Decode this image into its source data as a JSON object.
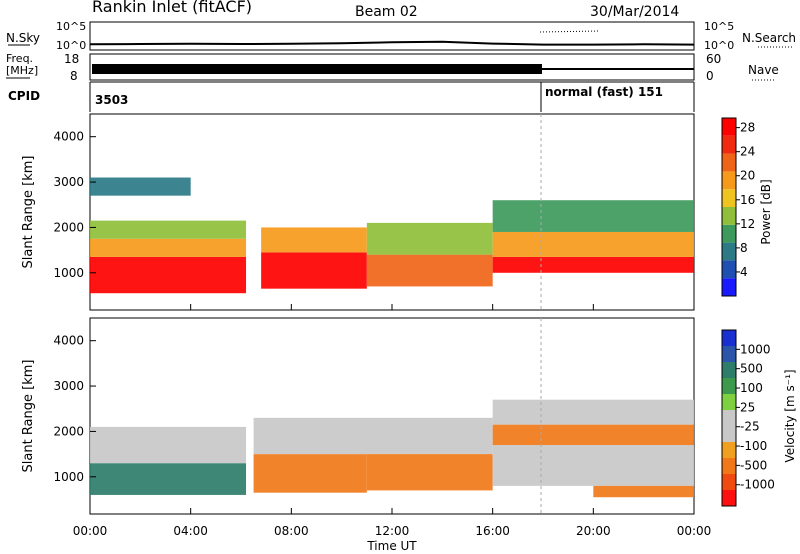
{
  "header": {
    "site": "Rankin Inlet (fitACF)",
    "beam": "Beam 02",
    "date": "30/Mar/2014"
  },
  "panels": {
    "noise": {
      "left_label": "N.Sky",
      "right_label": "N.Search",
      "left_ticks": [
        "10^5",
        "10^0"
      ],
      "right_ticks": [
        "10^5",
        "10^0"
      ]
    },
    "freq": {
      "left_label_1": "Freq.",
      "left_label_2": "[MHz]",
      "left_ticks": [
        "18",
        "8"
      ],
      "right_label": "Nave",
      "right_ticks": [
        "60",
        "0"
      ]
    },
    "cpid": {
      "label": "CPID",
      "segments": [
        {
          "text": "3503",
          "start_hour": 0
        },
        {
          "text": "normal (fast) 151",
          "start_hour": 18
        }
      ]
    }
  },
  "power": {
    "ylabel": "Slant Range [km]",
    "yticks": [
      "1000",
      "2000",
      "3000",
      "4000"
    ],
    "colorbar": {
      "label": "Power [dB]",
      "ticks": [
        "4",
        "8",
        "12",
        "16",
        "20",
        "24",
        "28"
      ],
      "colors": [
        "#1a1aff",
        "#1f4fb0",
        "#2b7a86",
        "#3e9a5c",
        "#8fbf3a",
        "#f0c420",
        "#f59a1a",
        "#f06418",
        "#f02a10",
        "#ff0000"
      ]
    }
  },
  "velocity": {
    "ylabel": "Slant Range [km]",
    "yticks": [
      "1000",
      "2000",
      "3000",
      "4000"
    ],
    "colorbar": {
      "label": "Velocity [m s⁻¹]",
      "ticks": [
        "1000",
        "500",
        "100",
        "25",
        "-25",
        "-100",
        "-500",
        "-1000"
      ],
      "colors": [
        "#1a2fd0",
        "#2a55a8",
        "#2e7d6a",
        "#3d9a4c",
        "#7ed040",
        "#c8c8c8",
        "#c8c8c8",
        "#f0a020",
        "#f07818",
        "#f04a10",
        "#ff1010"
      ]
    }
  },
  "time_axis": {
    "label": "Time UT",
    "ticks": [
      "00:00",
      "04:00",
      "08:00",
      "12:00",
      "16:00",
      "20:00",
      "00:00"
    ]
  },
  "chart_data": [
    {
      "type": "line",
      "name": "noise",
      "x_range_hours": [
        0,
        24
      ],
      "left_label": "N.Sky",
      "right_label": "N.Search",
      "yscale": "log",
      "ylim": [
        1,
        100000
      ],
      "series": [
        {
          "x": [
            0,
            2,
            4,
            6,
            8,
            10,
            12,
            14,
            16,
            18,
            20,
            22,
            24
          ],
          "y": [
            7,
            8,
            9,
            8,
            9,
            12,
            20,
            25,
            10,
            6,
            6,
            7,
            6
          ]
        }
      ]
    },
    {
      "type": "line",
      "name": "frequency",
      "x_range_hours": [
        0,
        24
      ],
      "ylabel": "Freq. [MHz]",
      "ylim": [
        8,
        18
      ],
      "series": [
        {
          "x": [
            0,
            24
          ],
          "y": [
            10.4,
            10.4
          ]
        }
      ],
      "right_axis": {
        "label": "Nave",
        "ylim": [
          0,
          60
        ]
      }
    },
    {
      "type": "heatmap",
      "name": "power",
      "xlabel": "Time UT",
      "ylabel": "Slant Range [km]",
      "x_range_hours": [
        0,
        24
      ],
      "ylim": [
        180,
        4500
      ],
      "colorbar_label": "Power [dB]",
      "colorbar_range": [
        0,
        30
      ],
      "bands": [
        {
          "t0": 0,
          "t1": 6.2,
          "r0": 550,
          "r1": 1350,
          "value": 28
        },
        {
          "t0": 0,
          "t1": 6.2,
          "r0": 1350,
          "r1": 1750,
          "value": 20
        },
        {
          "t0": 0,
          "t1": 6.2,
          "r0": 1750,
          "r1": 2150,
          "value": 14
        },
        {
          "t0": 6.8,
          "t1": 11,
          "r0": 650,
          "r1": 1450,
          "value": 28
        },
        {
          "t0": 6.8,
          "t1": 11,
          "r0": 1450,
          "r1": 2000,
          "value": 18
        },
        {
          "t0": 11,
          "t1": 16,
          "r0": 700,
          "r1": 1400,
          "value": 22
        },
        {
          "t0": 11,
          "t1": 16,
          "r0": 1400,
          "r1": 2100,
          "value": 12
        },
        {
          "t0": 16,
          "t1": 24,
          "r0": 1000,
          "r1": 1350,
          "value": 28
        },
        {
          "t0": 16,
          "t1": 24,
          "r0": 1350,
          "r1": 1900,
          "value": 18
        },
        {
          "t0": 16,
          "t1": 24,
          "r0": 1900,
          "r1": 2600,
          "value": 10
        },
        {
          "t0": 0,
          "t1": 4,
          "r0": 2700,
          "r1": 3100,
          "value": 8
        }
      ]
    },
    {
      "type": "heatmap",
      "name": "velocity",
      "xlabel": "Time UT",
      "ylabel": "Slant Range [km]",
      "x_range_hours": [
        0,
        24
      ],
      "ylim": [
        180,
        4500
      ],
      "colorbar_label": "Velocity [m s-1]",
      "colorbar_range": [
        -1000,
        1000
      ],
      "bands": [
        {
          "t0": 0,
          "t1": 6.2,
          "r0": 600,
          "r1": 1300,
          "value": 150
        },
        {
          "t0": 0,
          "t1": 6.2,
          "r0": 1300,
          "r1": 2100,
          "value": 0
        },
        {
          "t0": 6.5,
          "t1": 11,
          "r0": 650,
          "r1": 1500,
          "value": -200
        },
        {
          "t0": 6.5,
          "t1": 16,
          "r0": 1500,
          "r1": 2300,
          "value": 0
        },
        {
          "t0": 11,
          "t1": 16,
          "r0": 700,
          "r1": 1500,
          "value": -150
        },
        {
          "t0": 16,
          "t1": 24,
          "r0": 800,
          "r1": 1700,
          "value": 0
        },
        {
          "t0": 16,
          "t1": 24,
          "r0": 1700,
          "r1": 2150,
          "value": -300
        },
        {
          "t0": 16,
          "t1": 24,
          "r0": 2150,
          "r1": 2700,
          "value": 0
        },
        {
          "t0": 20,
          "t1": 24,
          "r0": 550,
          "r1": 800,
          "value": -200
        }
      ]
    }
  ]
}
